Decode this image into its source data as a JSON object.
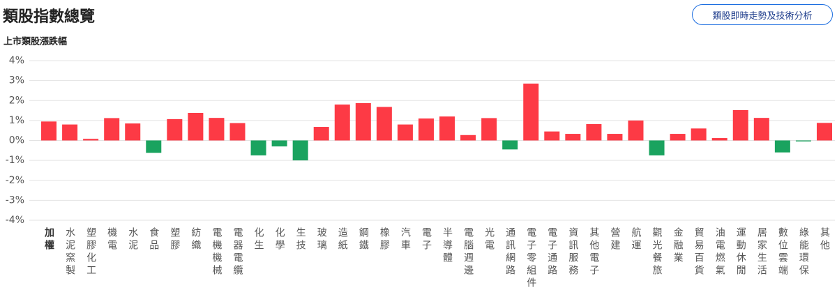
{
  "header": {
    "title": "類股指數總覽",
    "button": "類股即時走勢及技術分析"
  },
  "chart_data": {
    "type": "bar",
    "title": "上市類股漲跌幅",
    "categories": [
      "加權",
      "水泥窯製",
      "塑膠化工",
      "機電",
      "水泥",
      "食品",
      "塑膠",
      "紡織",
      "電機機械",
      "電器電纜",
      "化生",
      "化學",
      "生技",
      "玻璃",
      "造紙",
      "鋼鐵",
      "橡膠",
      "汽車",
      "電子",
      "半導體",
      "電腦週邊",
      "光電",
      "通訊網路",
      "電子零組件",
      "電子通路",
      "資訊服務",
      "其他電子",
      "營建",
      "航運",
      "觀光餐旅",
      "金融業",
      "貿易百貨",
      "油電燃氣",
      "運動休閒",
      "居家生活",
      "數位雲端",
      "綠能環保",
      "其他"
    ],
    "values": [
      0.95,
      0.8,
      0.08,
      1.12,
      0.85,
      -0.62,
      1.07,
      1.38,
      1.13,
      0.87,
      -0.75,
      -0.3,
      -1.0,
      0.68,
      1.8,
      1.87,
      1.68,
      0.8,
      1.1,
      1.2,
      0.27,
      1.12,
      -0.45,
      2.85,
      0.45,
      0.33,
      0.82,
      0.33,
      1.0,
      -0.75,
      0.33,
      0.6,
      0.12,
      1.52,
      1.13,
      -0.6,
      -0.05,
      0.88
    ],
    "positive_color": "#fd3a45",
    "negative_color": "#1aa35f",
    "ylim": [
      -4,
      4
    ],
    "yticks": [
      {
        "value": -4,
        "label": "-4%"
      },
      {
        "value": -3,
        "label": "-3%"
      },
      {
        "value": -2,
        "label": "-2%"
      },
      {
        "value": -1,
        "label": "-1%"
      },
      {
        "value": 0,
        "label": "0%"
      },
      {
        "value": 1,
        "label": "1%"
      },
      {
        "value": 2,
        "label": "2%"
      },
      {
        "value": 3,
        "label": "3%"
      },
      {
        "value": 4,
        "label": "4%"
      }
    ],
    "grid": true
  }
}
